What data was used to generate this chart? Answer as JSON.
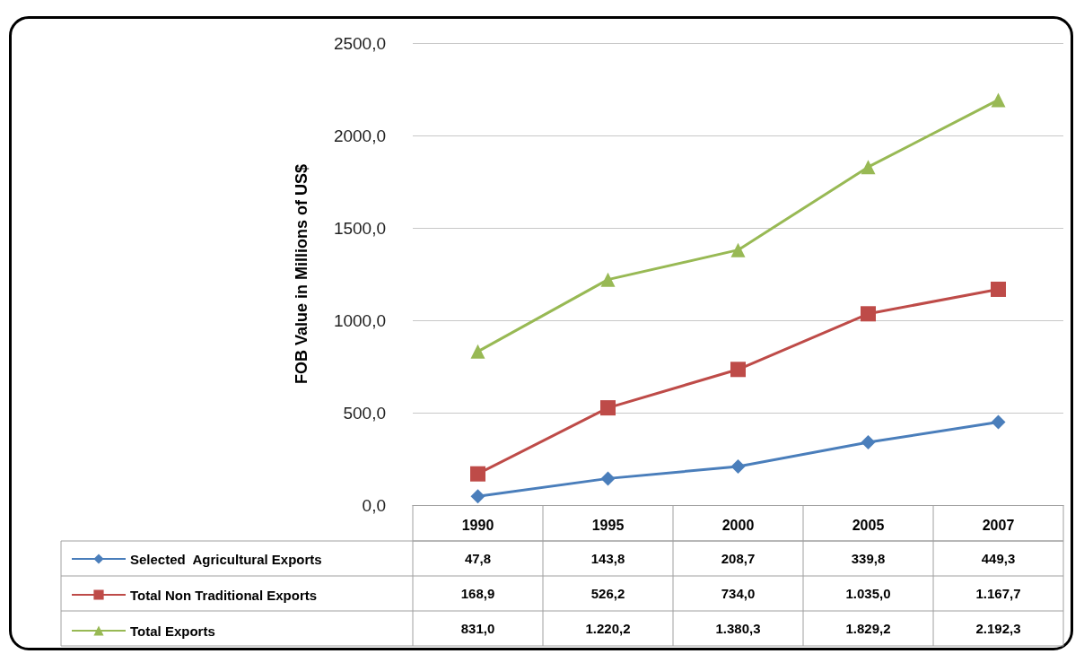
{
  "chart_data": {
    "type": "line",
    "ylabel": "FOB Value in Millions of US$",
    "categories": [
      "1990",
      "1995",
      "2000",
      "2005",
      "2007"
    ],
    "series": [
      {
        "name": "Selected  Agricultural Exports",
        "color": "#4a7ebb",
        "marker": "diamond",
        "values": [
          47.8,
          143.8,
          208.7,
          339.8,
          449.3
        ],
        "value_labels": [
          "47,8",
          "143,8",
          "208,7",
          "339,8",
          "449,3"
        ]
      },
      {
        "name": "Total Non Traditional Exports",
        "color": "#be4b48",
        "marker": "square",
        "values": [
          168.9,
          526.2,
          734.0,
          1035.0,
          1167.7
        ],
        "value_labels": [
          "168,9",
          "526,2",
          "734,0",
          "1.035,0",
          "1.167,7"
        ]
      },
      {
        "name": "Total Exports",
        "color": "#98b954",
        "marker": "triangle",
        "values": [
          831.0,
          1220.2,
          1380.3,
          1829.2,
          2192.3
        ],
        "value_labels": [
          "831,0",
          "1.220,2",
          "1.380,3",
          "1.829,2",
          "2.192,3"
        ]
      }
    ],
    "ylim": [
      0,
      2500
    ],
    "yticks": [
      {
        "value": 0,
        "label": "0,0"
      },
      {
        "value": 500,
        "label": "500,0"
      },
      {
        "value": 1000,
        "label": "1000,0"
      },
      {
        "value": 1500,
        "label": "1500,0"
      },
      {
        "value": 2000,
        "label": "2000,0"
      },
      {
        "value": 2500,
        "label": "2500,0"
      }
    ],
    "grid": "y",
    "legend": "bottom"
  }
}
